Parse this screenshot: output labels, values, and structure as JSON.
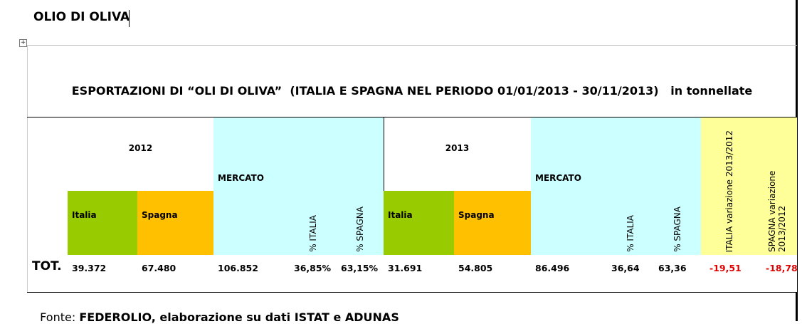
{
  "title": "OLIO DI OLIVA",
  "table": {
    "caption": "ESPORTAZIONI DI “OLI DI OLIVA”  (ITALIA E SPAGNA NEL PERIODO 01/01/2013 - 30/11/2013)   in tonnellate",
    "year_headers": [
      "2012",
      "2013"
    ],
    "columns": [
      "Italia",
      "Spagna",
      "MERCATO",
      "% ITALIA",
      "% SPAGNA",
      "Italia",
      "Spagna",
      "MERCATO",
      "% ITALIA",
      "% SPAGNA",
      "ITALIA variazione 2013/2012",
      "SPAGNA variazione 2013/2012"
    ],
    "total_row": {
      "label": "TOT.",
      "values": [
        "39.372",
        "67.480",
        "106.852",
        "36,85%",
        "63,15%",
        "31.691",
        "54.805",
        "86.496",
        "36,64",
        "63,36",
        "-19,51",
        "-18,78"
      ]
    }
  },
  "footer": {
    "source_label": "Fonte:",
    "source": "FEDEROLIO, elaborazione su dati ISTAT e ADUNAS"
  }
}
